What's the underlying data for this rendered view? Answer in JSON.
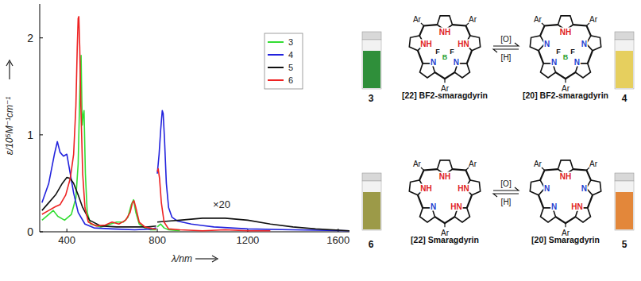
{
  "chart_data": {
    "type": "line",
    "x_label": "λ/nm",
    "y_label": "ε/10⁵M⁻¹cm⁻¹",
    "annotations": [
      "×20"
    ],
    "xlim": [
      280,
      1650
    ],
    "xticks": [
      400,
      800,
      1200,
      1600
    ],
    "ylim": [
      0,
      2.35
    ],
    "yticks": [
      0,
      1,
      2
    ],
    "legend": "upper right",
    "series": [
      {
        "name": "3",
        "color": "#33dd33",
        "x": [
          290,
          320,
          340,
          360,
          390,
          420,
          440,
          450,
          458,
          463,
          468,
          472,
          476,
          482,
          490,
          505,
          550,
          580,
          620,
          650,
          670,
          685,
          695,
          705,
          720,
          745,
          770,
          795,
          798,
          800,
          815,
          830,
          850,
          900
        ],
        "values": [
          0.12,
          0.18,
          0.22,
          0.16,
          0.12,
          0.18,
          0.35,
          0.7,
          1.5,
          1.82,
          1.1,
          1.2,
          1.25,
          0.6,
          0.2,
          0.08,
          0.05,
          0.07,
          0.1,
          0.1,
          0.15,
          0.28,
          0.33,
          0.2,
          0.08,
          0.04,
          0.02,
          0.02,
          null,
          0.05,
          0.08,
          0.04,
          0.02,
          0.01
        ]
      },
      {
        "name": "4",
        "color": "#2222dd",
        "x": [
          290,
          320,
          345,
          358,
          370,
          385,
          400,
          415,
          430,
          450,
          480,
          520,
          600,
          700,
          780,
          795,
          798,
          800,
          808,
          815,
          822,
          826,
          832,
          840,
          850,
          865,
          890,
          950,
          1050,
          1200,
          1400,
          1650
        ],
        "values": [
          0.3,
          0.5,
          0.8,
          0.93,
          0.82,
          0.78,
          0.8,
          0.6,
          0.4,
          0.2,
          0.08,
          0.04,
          0.03,
          0.02,
          0.03,
          0.04,
          null,
          0.6,
          0.8,
          1.05,
          1.25,
          1.22,
          0.95,
          0.5,
          0.25,
          0.15,
          0.11,
          0.08,
          0.05,
          0.03,
          0.02,
          0.01
        ]
      },
      {
        "name": "5",
        "color": "#111111",
        "x": [
          290,
          320,
          350,
          380,
          400,
          415,
          430,
          450,
          470,
          500,
          550,
          620,
          700,
          760,
          795,
          798,
          800,
          850,
          900,
          950,
          1000,
          1050,
          1100,
          1150,
          1200,
          1300,
          1400,
          1500,
          1650
        ],
        "values": [
          0.22,
          0.3,
          0.38,
          0.5,
          0.56,
          0.55,
          0.5,
          0.38,
          0.25,
          0.12,
          0.06,
          0.05,
          0.05,
          0.05,
          0.06,
          null,
          0.1,
          0.11,
          0.12,
          0.13,
          0.14,
          0.14,
          0.14,
          0.13,
          0.12,
          0.08,
          0.05,
          0.03,
          0.01
        ]
      },
      {
        "name": "6",
        "color": "#ee2222",
        "x": [
          290,
          320,
          350,
          370,
          395,
          415,
          430,
          440,
          446,
          450,
          453,
          457,
          462,
          470,
          480,
          495,
          530,
          570,
          600,
          630,
          660,
          680,
          690,
          697,
          705,
          720,
          745,
          780,
          795,
          798,
          800,
          804,
          810,
          818,
          830,
          850,
          900,
          1000,
          1100,
          1200,
          1300
        ],
        "values": [
          0.18,
          0.22,
          0.26,
          0.28,
          0.38,
          0.55,
          0.8,
          1.3,
          1.9,
          2.2,
          2.22,
          1.9,
          1.3,
          0.6,
          0.25,
          0.1,
          0.06,
          0.07,
          0.1,
          0.08,
          0.12,
          0.2,
          0.3,
          0.32,
          0.25,
          0.1,
          0.05,
          0.03,
          0.03,
          null,
          0.62,
          0.65,
          0.55,
          0.3,
          0.1,
          0.03,
          0.02,
          0.01,
          0.02,
          0.01,
          0.01
        ]
      }
    ]
  },
  "scheme": {
    "meso_group": "Ar",
    "reactions": [
      {
        "oxidant": "[O]",
        "reductant": "[H]"
      },
      {
        "oxidant": "[O]",
        "reductant": "[H]"
      }
    ],
    "structures": [
      {
        "number": "3",
        "name": "[22] BF2-smaragdyrin",
        "color": "#2f8f3a",
        "atoms": [
          {
            "text": "NH",
            "color": "#e0201b"
          },
          {
            "text": "HN",
            "color": "#e0201b"
          },
          {
            "text": "N",
            "color": "#1f3fcf"
          },
          {
            "text": "N",
            "color": "#1f3fcf"
          },
          {
            "text": "NH",
            "color": "#e0201b"
          }
        ],
        "center": [
          "F",
          "B",
          "F"
        ]
      },
      {
        "number": "4",
        "name": "[20] BF2-smaragdyrin",
        "color": "#e6cf5e",
        "atoms": [
          {
            "text": "NH",
            "color": "#e0201b"
          },
          {
            "text": "N",
            "color": "#1f3fcf"
          },
          {
            "text": "N",
            "color": "#1f3fcf"
          },
          {
            "text": "N",
            "color": "#1f3fcf"
          },
          {
            "text": "N",
            "color": "#1f3fcf"
          }
        ],
        "center": [
          "F",
          "B",
          "F"
        ]
      },
      {
        "number": "6",
        "name": "[22] Smaragdyrin",
        "color": "#9c9a48",
        "atoms": [
          {
            "text": "NH",
            "color": "#e0201b"
          },
          {
            "text": "HN",
            "color": "#e0201b"
          },
          {
            "text": "HN",
            "color": "#e0201b"
          },
          {
            "text": "N",
            "color": "#1f3fcf"
          },
          {
            "text": "NH",
            "color": "#e0201b"
          }
        ]
      },
      {
        "number": "5",
        "name": "[20] Smaragdyrin",
        "color": "#e3873a",
        "atoms": [
          {
            "text": "NH",
            "color": "#e0201b"
          },
          {
            "text": "N",
            "color": "#1f3fcf"
          },
          {
            "text": "HN",
            "color": "#e0201b"
          },
          {
            "text": "N",
            "color": "#1f3fcf"
          },
          {
            "text": "N",
            "color": "#1f3fcf"
          }
        ]
      }
    ]
  }
}
